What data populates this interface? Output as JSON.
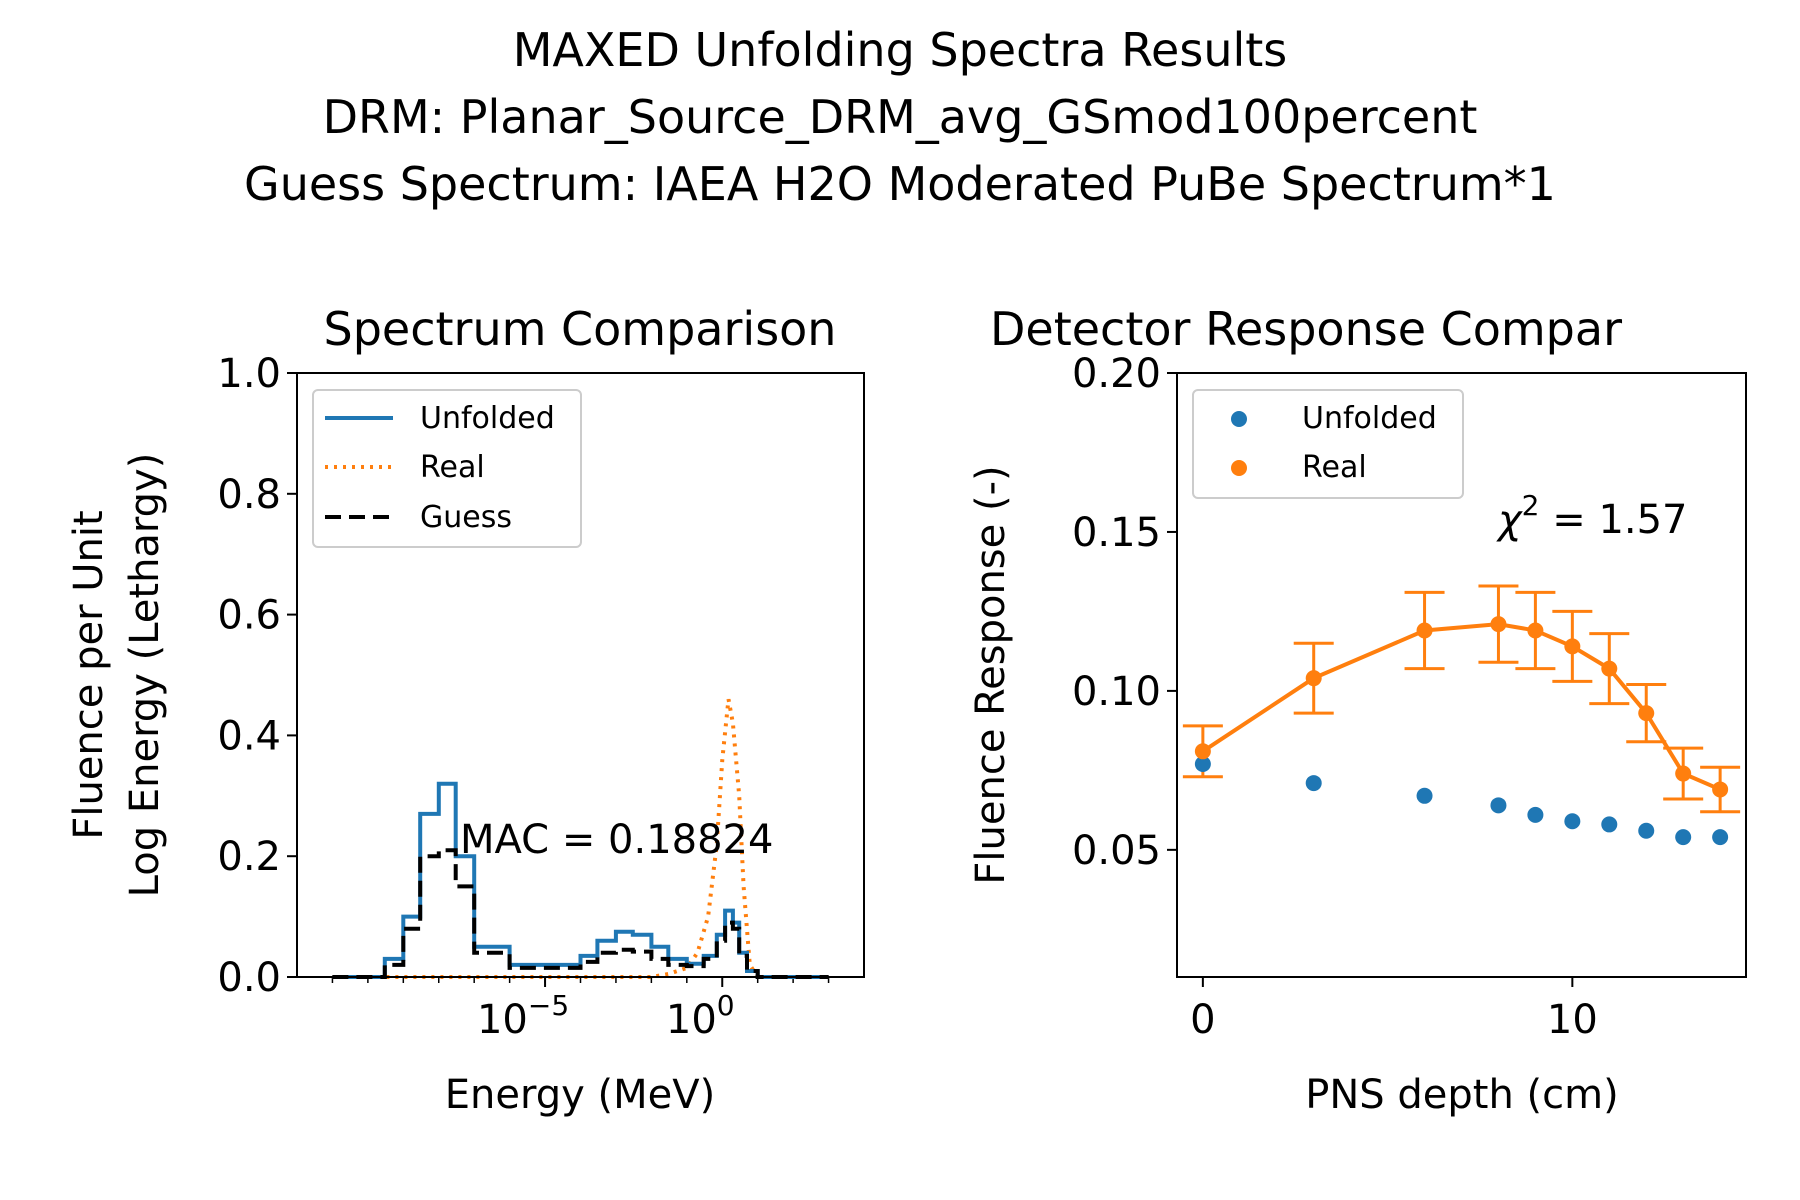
{
  "figure": {
    "title_lines": [
      "MAXED Unfolding Spectra Results",
      "DRM: Planar_Source_DRM_avg_GSmod100percent",
      "Guess Spectrum: IAEA H2O Moderated PuBe Spectrum*1"
    ]
  },
  "chart_data": [
    {
      "type": "line",
      "title": "Spectrum Comparison",
      "xlabel": "Energy (MeV)",
      "ylabel_lines": [
        "Fluence per Unit",
        "Log Energy (Lethargy)"
      ],
      "x_scale": "log",
      "xlim": [
        1e-12,
        10000.0
      ],
      "ylim": [
        0,
        1.0
      ],
      "x_ticks": [
        {
          "value": 1e-05,
          "base": "10",
          "exp": "−5"
        },
        {
          "value": 1,
          "base": "10",
          "exp": "0"
        }
      ],
      "y_ticks": [
        "0.0",
        "0.2",
        "0.4",
        "0.6",
        "0.8",
        "1.0"
      ],
      "legend_position": "upper left",
      "annotation": "MAC = 0.18824",
      "series": [
        {
          "name": "Unfolded",
          "style": "solid",
          "color": "#1f77b4",
          "x": [
            1e-11,
            1e-10,
            3e-10,
            1e-09,
            3e-09,
            1e-08,
            3e-08,
            1e-07,
            1e-06,
            1e-05,
            0.0001,
            0.0003,
            0.001,
            0.003,
            0.01,
            0.03,
            0.1,
            0.3,
            0.7,
            1.2,
            2,
            3,
            5,
            10,
            100,
            1000
          ],
          "y": [
            0,
            0,
            0.03,
            0.1,
            0.27,
            0.32,
            0.2,
            0.05,
            0.02,
            0.02,
            0.035,
            0.06,
            0.075,
            0.07,
            0.05,
            0.03,
            0.022,
            0.035,
            0.07,
            0.11,
            0.09,
            0.04,
            0.01,
            0,
            0,
            0
          ]
        },
        {
          "name": "Real",
          "style": "dotted",
          "color": "#ff7f0e",
          "x": [
            1e-11,
            0.0001,
            0.01,
            0.03,
            0.1,
            0.2,
            0.4,
            0.7,
            1.0,
            1.5,
            2,
            3,
            4,
            6,
            10,
            100,
            1000
          ],
          "y": [
            0,
            0,
            0,
            0.005,
            0.015,
            0.04,
            0.1,
            0.22,
            0.36,
            0.46,
            0.42,
            0.3,
            0.15,
            0.02,
            0,
            0,
            0
          ]
        },
        {
          "name": "Guess",
          "style": "dashed",
          "color": "#000000",
          "x": [
            1e-11,
            1e-10,
            3e-10,
            1e-09,
            3e-09,
            1e-08,
            3e-08,
            1e-07,
            1e-06,
            1e-05,
            0.0001,
            0.0003,
            0.001,
            0.003,
            0.01,
            0.03,
            0.1,
            0.3,
            0.7,
            1.2,
            2,
            3,
            5,
            10,
            100,
            1000
          ],
          "y": [
            0,
            0,
            0.02,
            0.08,
            0.2,
            0.21,
            0.15,
            0.04,
            0.015,
            0.015,
            0.025,
            0.04,
            0.045,
            0.042,
            0.03,
            0.02,
            0.018,
            0.03,
            0.06,
            0.09,
            0.08,
            0.035,
            0.01,
            0,
            0,
            0
          ]
        }
      ]
    },
    {
      "type": "scatter",
      "title": "Detector Response Compar",
      "xlabel": "PNS depth (cm)",
      "ylabel": "Fluence Response (-)",
      "xlim": [
        -0.7,
        14.7
      ],
      "ylim": [
        0.01,
        0.2
      ],
      "x_ticks": [
        "0",
        "10"
      ],
      "y_ticks": [
        "0.05",
        "0.10",
        "0.15",
        "0.20"
      ],
      "legend_position": "upper left",
      "annotation": {
        "symbol": "χ",
        "sup": "2",
        "text": " = 1.57"
      },
      "series": [
        {
          "name": "Unfolded",
          "color": "#1f77b4",
          "x": [
            0,
            3,
            6,
            8,
            9,
            10,
            11,
            12,
            13,
            14
          ],
          "y": [
            0.077,
            0.071,
            0.067,
            0.064,
            0.061,
            0.059,
            0.058,
            0.056,
            0.054,
            0.054
          ]
        },
        {
          "name": "Real",
          "color": "#ff7f0e",
          "x": [
            0,
            3,
            6,
            8,
            9,
            10,
            11,
            12,
            13,
            14
          ],
          "y": [
            0.081,
            0.104,
            0.119,
            0.121,
            0.119,
            0.114,
            0.107,
            0.093,
            0.074,
            0.069
          ],
          "yerr": [
            0.008,
            0.011,
            0.012,
            0.012,
            0.012,
            0.011,
            0.011,
            0.009,
            0.008,
            0.007
          ]
        }
      ]
    }
  ]
}
